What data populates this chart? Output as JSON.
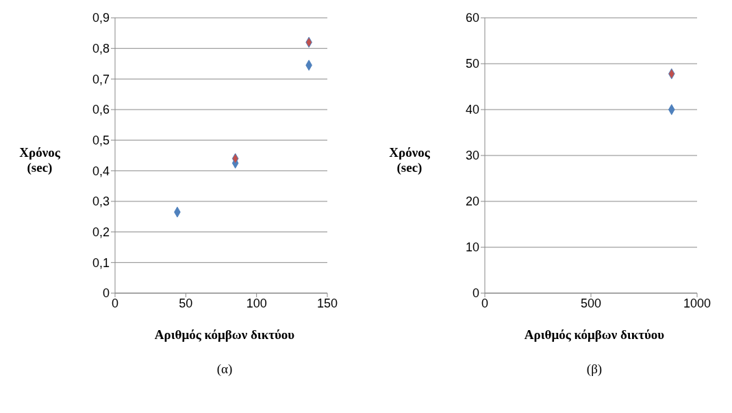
{
  "chart_data": [
    {
      "type": "scatter",
      "xlabel": "Αριθμός κόμβων δικτύου",
      "ylabel": "Χρόνος (sec)",
      "annotations": [
        "(α)"
      ],
      "marker": "diamond",
      "grid": "y",
      "series": [
        {
          "color": "#4f81bd",
          "x": [
            44,
            85,
            137
          ],
          "values": [
            0.265,
            0.425,
            0.745
          ]
        },
        {
          "color": "#c0504d",
          "x": [
            85,
            137
          ],
          "values": [
            0.44,
            0.82
          ]
        }
      ],
      "xlim": [
        0,
        150
      ],
      "xticks": [
        0,
        50,
        100,
        150
      ],
      "ylim": [
        0,
        0.9
      ],
      "yticks": [
        0,
        {
          "value": 0.1,
          "label": "0,1"
        },
        {
          "value": 0.2,
          "label": "0,2"
        },
        {
          "value": 0.3,
          "label": "0,3"
        },
        {
          "value": 0.4,
          "label": "0,4"
        },
        {
          "value": 0.5,
          "label": "0,5"
        },
        {
          "value": 0.6,
          "label": "0,6"
        },
        {
          "value": 0.7,
          "label": "0,7"
        },
        {
          "value": 0.8,
          "label": "0,8"
        },
        {
          "value": 0.9,
          "label": "0,9"
        }
      ]
    },
    {
      "type": "scatter",
      "xlabel": "Αριθμός κόμβων δικτύου",
      "ylabel": "Χρόνος (sec)",
      "annotations": [
        "(β)"
      ],
      "marker": "diamond",
      "grid": "y",
      "series": [
        {
          "color": "#4f81bd",
          "x": [
            880
          ],
          "values": [
            40
          ]
        },
        {
          "color": "#c0504d",
          "x": [
            880
          ],
          "values": [
            47.8
          ]
        }
      ],
      "xlim": [
        0,
        1000
      ],
      "xticks": [
        0,
        500,
        1000
      ],
      "ylim": [
        0,
        60
      ],
      "yticks": [
        0,
        10,
        20,
        30,
        40,
        50,
        60
      ]
    }
  ]
}
